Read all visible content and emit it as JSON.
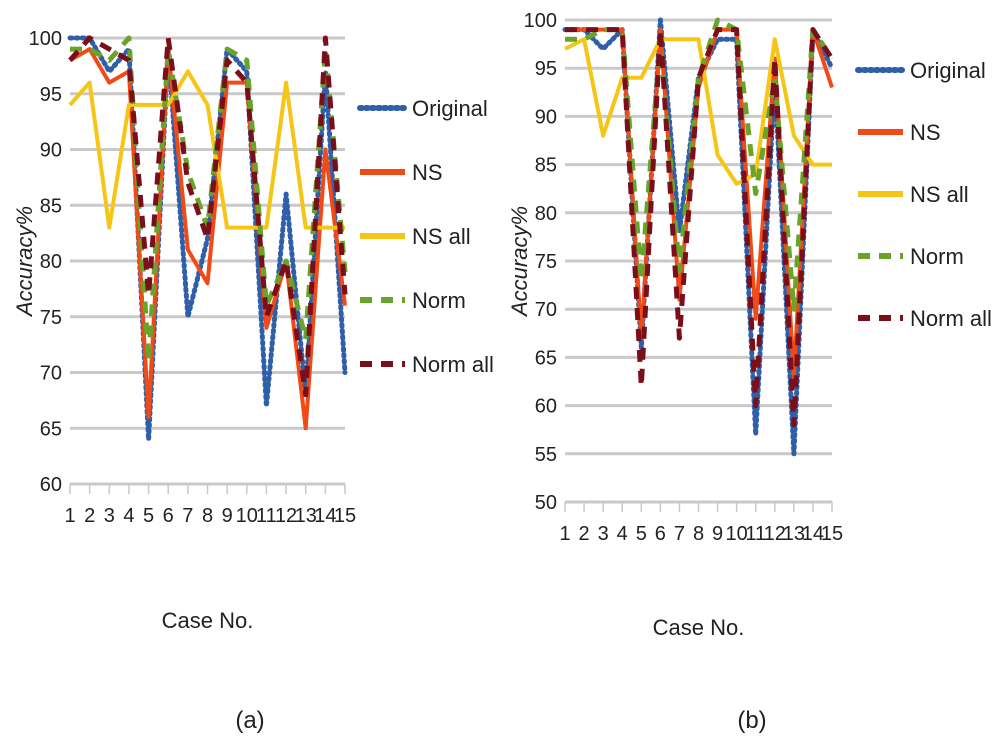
{
  "chart_data": [
    {
      "type": "line",
      "panel_label": "(a)",
      "xlabel": "Case No.",
      "ylabel": "Accuracy%",
      "ylim": [
        60,
        100
      ],
      "ytick_step": 5,
      "grid": true,
      "legend_position": "right",
      "categories": [
        "1",
        "2",
        "3",
        "4",
        "5",
        "6",
        "7",
        "8",
        "9",
        "10",
        "11",
        "12",
        "13",
        "14",
        "15"
      ],
      "series": [
        {
          "name": "Original",
          "color": "#2e5fa8",
          "style": "dotted",
          "values": [
            100,
            100,
            97,
            99,
            64,
            99,
            75,
            82,
            99,
            97,
            67,
            86,
            68,
            97,
            70
          ]
        },
        {
          "name": "NS",
          "color": "#f04a16",
          "style": "solid",
          "values": [
            98,
            99,
            96,
            97,
            66,
            99,
            81,
            78,
            96,
            96,
            74,
            80,
            65,
            90,
            76
          ]
        },
        {
          "name": "NS all",
          "color": "#f5c518",
          "style": "solid",
          "values": [
            94,
            96,
            83,
            94,
            94,
            94,
            97,
            94,
            83,
            83,
            83,
            96,
            83,
            83,
            83
          ]
        },
        {
          "name": "Norm",
          "color": "#6aa32a",
          "style": "dashed",
          "values": [
            99,
            99,
            98,
            100,
            71,
            99,
            88,
            83,
            99,
            98,
            76,
            80,
            73,
            99,
            79
          ]
        },
        {
          "name": "Norm all",
          "color": "#7a0f1a",
          "style": "dashed",
          "values": [
            98,
            100,
            99,
            98,
            77,
            100,
            87,
            82,
            98,
            96,
            75,
            80,
            68,
            100,
            77
          ]
        }
      ]
    },
    {
      "type": "line",
      "panel_label": "(b)",
      "xlabel": "Case No.",
      "ylabel": "Accuracy%",
      "ylim": [
        50,
        100
      ],
      "ytick_step": 5,
      "grid": true,
      "legend_position": "right",
      "categories": [
        "1",
        "2",
        "3",
        "4",
        "5",
        "6",
        "7",
        "8",
        "9",
        "10",
        "11",
        "12",
        "13",
        "14",
        "15"
      ],
      "series": [
        {
          "name": "Original",
          "color": "#2e5fa8",
          "style": "dotted",
          "values": [
            99,
            99,
            97,
            99,
            66,
            100,
            78,
            94,
            98,
            98,
            57,
            94,
            55,
            99,
            95
          ]
        },
        {
          "name": "NS",
          "color": "#f04a16",
          "style": "solid",
          "values": [
            99,
            99,
            99,
            99,
            67,
            99,
            71,
            93,
            99,
            99,
            69,
            96,
            63,
            99,
            93
          ]
        },
        {
          "name": "NS all",
          "color": "#f5c518",
          "style": "solid",
          "values": [
            97,
            98,
            88,
            94,
            94,
            98,
            98,
            98,
            86,
            83,
            84,
            98,
            88,
            85,
            85
          ]
        },
        {
          "name": "Norm",
          "color": "#6aa32a",
          "style": "dashed",
          "values": [
            98,
            98,
            99,
            99,
            73,
            98,
            74,
            94,
            100,
            99,
            82,
            94,
            70,
            99,
            96
          ]
        },
        {
          "name": "Norm all",
          "color": "#7a0f1a",
          "style": "dashed",
          "values": [
            99,
            99,
            99,
            99,
            62,
            99,
            67,
            94,
            99,
            99,
            60,
            96,
            58,
            99,
            96
          ]
        }
      ]
    }
  ]
}
